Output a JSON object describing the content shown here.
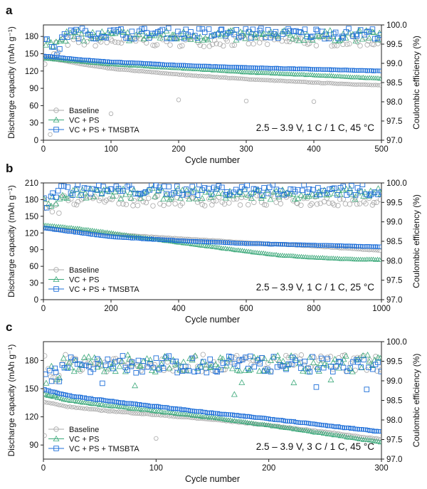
{
  "colors": {
    "baseline": "#a8a8a8",
    "vcps": "#3aa879",
    "tmsbta": "#1e6fd9",
    "axis": "#222222",
    "text": "#111111"
  },
  "chart_data": [
    {
      "type": "scatter",
      "panel_label": "a",
      "xlabel": "Cycle number",
      "ylabel": "Discharge capacity (mAh g⁻¹)",
      "y2label": "Coulombic efficiency (%)",
      "xlim": [
        0,
        500
      ],
      "ylim": [
        0,
        200
      ],
      "y2lim": [
        97.0,
        100.0
      ],
      "xticks": [
        "0",
        "100",
        "200",
        "300",
        "400",
        "500"
      ],
      "yticks": [
        "0",
        "30",
        "60",
        "90",
        "120",
        "150",
        "180"
      ],
      "y2ticks": [
        "97.0",
        "97.5",
        "98.0",
        "98.5",
        "99.0",
        "99.5",
        "100.0"
      ],
      "annotation": "2.5 – 3.9 V, 1 C / 1 C, 45 °C",
      "legend": [
        "Baseline",
        "VC + PS",
        "VC + PS + TMSBTA"
      ],
      "legend_position": "bottom-left",
      "series": [
        {
          "name": "Baseline",
          "capacity": {
            "x": [
              1,
              50,
              100,
              200,
              300,
              400,
              500
            ],
            "y": [
              144,
              133,
              124,
              114,
              106,
              100,
              95
            ]
          },
          "efficiency_mean": 99.58,
          "outliers": [
            [
              10,
              10
            ],
            [
              100,
              46
            ],
            [
              200,
              70
            ],
            [
              300,
              68
            ],
            [
              400,
              67
            ]
          ]
        },
        {
          "name": "VC + PS",
          "capacity": {
            "x": [
              1,
              50,
              100,
              200,
              300,
              400,
              500
            ],
            "y": [
              142,
              137,
              132,
              125,
              118,
              113,
              107
            ]
          },
          "efficiency_mean": 99.72
        },
        {
          "name": "VC + PS + TMSBTA",
          "capacity": {
            "x": [
              1,
              50,
              100,
              200,
              300,
              400,
              500
            ],
            "y": [
              146,
              140,
              136,
              130,
              126,
              123,
              120
            ]
          },
          "efficiency_mean": 99.78
        }
      ]
    },
    {
      "type": "scatter",
      "panel_label": "b",
      "xlabel": "Cycle number",
      "ylabel": "Discharge capacity (mAh g⁻¹)",
      "y2label": "Coulombic efficiency (%)",
      "xlim": [
        0,
        1000
      ],
      "ylim": [
        0,
        210
      ],
      "y2lim": [
        97.0,
        100.0
      ],
      "xticks": [
        "0",
        "200",
        "400",
        "600",
        "800",
        "1000"
      ],
      "yticks": [
        "0",
        "30",
        "60",
        "90",
        "120",
        "150",
        "180",
        "210"
      ],
      "y2ticks": [
        "97.0",
        "97.5",
        "98.0",
        "98.5",
        "99.0",
        "99.5",
        "100.0"
      ],
      "annotation": "2.5 – 3.9 V, 1 C / 1 C, 25 °C",
      "legend": [
        "Baseline",
        "VC + PS",
        "VC + PS + TMSBTA"
      ],
      "legend_position": "bottom-left",
      "series": [
        {
          "name": "Baseline",
          "capacity": {
            "x": [
              1,
              200,
              400,
              600,
              800,
              1000
            ],
            "y": [
              129,
              118,
              110,
              103,
              96,
              88
            ]
          },
          "efficiency_mean": 99.55
        },
        {
          "name": "VC + PS",
          "capacity": {
            "x": [
              1,
              100,
              200,
              300,
              400,
              500,
              600,
              700,
              800,
              900,
              1000
            ],
            "y": [
              134,
              128,
              120,
              111,
              103,
              95,
              87,
              80,
              76,
              73,
              72
            ]
          },
          "efficiency_mean": 99.72
        },
        {
          "name": "VC + PS + TMSBTA",
          "capacity": {
            "x": [
              1,
              200,
              400,
              600,
              800,
              1000
            ],
            "y": [
              129,
              113,
              106,
              101,
              98,
              95
            ]
          },
          "efficiency_mean": 99.82
        }
      ]
    },
    {
      "type": "scatter",
      "panel_label": "c",
      "xlabel": "Cycle number",
      "ylabel": "Discharge capacity (mAh g⁻¹)",
      "y2label": "Coulombic efficiency (%)",
      "xlim": [
        0,
        300
      ],
      "ylim": [
        75,
        200
      ],
      "y2lim": [
        97.0,
        100.0
      ],
      "xticks": [
        "0",
        "100",
        "200",
        "300"
      ],
      "yticks": [
        "90",
        "120",
        "150",
        "180"
      ],
      "y2ticks": [
        "97.0",
        "97.5",
        "98.0",
        "98.5",
        "99.0",
        "99.5",
        "100.0"
      ],
      "annotation": "2.5 – 3.9 V, 3 C / 1 C, 45 °C",
      "legend": [
        "Baseline",
        "VC + PS",
        "VC + PS + TMSBTA"
      ],
      "legend_position": "bottom-left",
      "series": [
        {
          "name": "Baseline",
          "capacity": {
            "x": [
              1,
              20,
              50,
              100,
              150,
              200,
              250,
              300
            ],
            "y": [
              136,
              131,
              127,
              122,
              117,
              111,
              104,
              96
            ]
          },
          "efficiency_mean": 99.45,
          "outliers": [
            [
              1,
              100
            ],
            [
              100,
              97
            ]
          ]
        },
        {
          "name": "VC + PS",
          "capacity": {
            "x": [
              1,
              20,
              50,
              100,
              150,
              200,
              250,
              300
            ],
            "y": [
              144,
              138,
              133,
              126,
              119,
              111,
              102,
              93
            ]
          },
          "efficiency_mean": 99.45
        },
        {
          "name": "VC + PS + TMSBTA",
          "capacity": {
            "x": [
              1,
              20,
              50,
              100,
              150,
              200,
              250,
              300
            ],
            "y": [
              149,
              143,
              138,
              131,
              124,
              118,
              111,
              104
            ]
          },
          "efficiency_mean": 99.42
        }
      ]
    }
  ]
}
